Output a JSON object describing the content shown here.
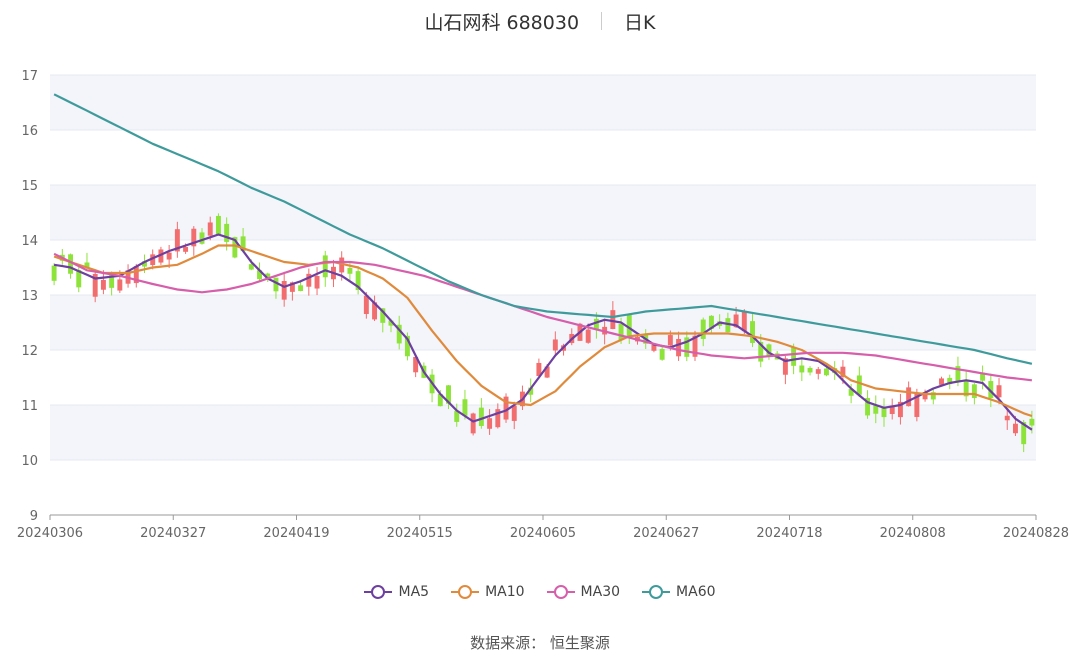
{
  "title": {
    "name": "山石网科 688030",
    "period": "日K"
  },
  "source": "数据来源： 恒生聚源",
  "colors": {
    "up": "#f26d6d",
    "down": "#8ee33b",
    "MA5": "#6c3fa0",
    "MA10": "#e08a3c",
    "MA30": "#d65eab",
    "MA60": "#3f9b9b"
  },
  "chart_data": {
    "type": "candlestick",
    "x_ticks": [
      "20240306",
      "20240327",
      "20240419",
      "20240515",
      "20240605",
      "20240627",
      "20240718",
      "20240808",
      "20240828"
    ],
    "y_ticks": [
      "9",
      "10",
      "11",
      "12",
      "13",
      "14",
      "15",
      "16",
      "17"
    ],
    "ylim": [
      9,
      17
    ],
    "n_days": 120,
    "legend": [
      "MA5",
      "MA10",
      "MA30",
      "MA60"
    ],
    "ma_series": [
      {
        "name": "MA5",
        "points": [
          [
            0,
            13.55
          ],
          [
            2,
            13.5
          ],
          [
            5,
            13.3
          ],
          [
            8,
            13.35
          ],
          [
            11,
            13.6
          ],
          [
            14,
            13.8
          ],
          [
            17,
            13.95
          ],
          [
            20,
            14.1
          ],
          [
            22,
            14.0
          ],
          [
            24,
            13.6
          ],
          [
            26,
            13.3
          ],
          [
            28,
            13.15
          ],
          [
            30,
            13.25
          ],
          [
            33,
            13.45
          ],
          [
            35,
            13.35
          ],
          [
            37,
            13.15
          ],
          [
            40,
            12.7
          ],
          [
            43,
            12.2
          ],
          [
            45,
            11.6
          ],
          [
            47,
            11.2
          ],
          [
            49,
            10.9
          ],
          [
            51,
            10.7
          ],
          [
            53,
            10.8
          ],
          [
            55,
            10.9
          ],
          [
            57,
            11.1
          ],
          [
            59,
            11.5
          ],
          [
            61,
            11.9
          ],
          [
            63,
            12.2
          ],
          [
            65,
            12.45
          ],
          [
            67,
            12.55
          ],
          [
            69,
            12.5
          ],
          [
            71,
            12.3
          ],
          [
            73,
            12.1
          ],
          [
            75,
            12.05
          ],
          [
            77,
            12.15
          ],
          [
            79,
            12.3
          ],
          [
            81,
            12.5
          ],
          [
            83,
            12.45
          ],
          [
            85,
            12.25
          ],
          [
            87,
            11.95
          ],
          [
            89,
            11.8
          ],
          [
            91,
            11.85
          ],
          [
            93,
            11.8
          ],
          [
            95,
            11.6
          ],
          [
            97,
            11.3
          ],
          [
            99,
            11.05
          ],
          [
            101,
            10.95
          ],
          [
            103,
            11.0
          ],
          [
            105,
            11.15
          ],
          [
            107,
            11.3
          ],
          [
            109,
            11.4
          ],
          [
            111,
            11.45
          ],
          [
            113,
            11.4
          ],
          [
            115,
            11.1
          ],
          [
            117,
            10.75
          ],
          [
            119,
            10.55
          ]
        ]
      },
      {
        "name": "MA10",
        "points": [
          [
            0,
            13.7
          ],
          [
            3,
            13.55
          ],
          [
            6,
            13.4
          ],
          [
            9,
            13.4
          ],
          [
            12,
            13.5
          ],
          [
            15,
            13.55
          ],
          [
            18,
            13.75
          ],
          [
            20,
            13.9
          ],
          [
            22,
            13.9
          ],
          [
            25,
            13.75
          ],
          [
            28,
            13.6
          ],
          [
            31,
            13.55
          ],
          [
            34,
            13.6
          ],
          [
            37,
            13.5
          ],
          [
            40,
            13.3
          ],
          [
            43,
            12.95
          ],
          [
            46,
            12.35
          ],
          [
            49,
            11.8
          ],
          [
            52,
            11.35
          ],
          [
            55,
            11.05
          ],
          [
            58,
            11.0
          ],
          [
            61,
            11.25
          ],
          [
            64,
            11.7
          ],
          [
            67,
            12.05
          ],
          [
            70,
            12.25
          ],
          [
            73,
            12.3
          ],
          [
            76,
            12.3
          ],
          [
            79,
            12.3
          ],
          [
            82,
            12.3
          ],
          [
            85,
            12.25
          ],
          [
            88,
            12.15
          ],
          [
            91,
            12.0
          ],
          [
            94,
            11.75
          ],
          [
            97,
            11.45
          ],
          [
            100,
            11.3
          ],
          [
            103,
            11.25
          ],
          [
            106,
            11.2
          ],
          [
            109,
            11.2
          ],
          [
            112,
            11.2
          ],
          [
            115,
            11.05
          ],
          [
            118,
            10.85
          ],
          [
            119,
            10.8
          ]
        ]
      },
      {
        "name": "MA30",
        "points": [
          [
            0,
            13.75
          ],
          [
            4,
            13.45
          ],
          [
            8,
            13.35
          ],
          [
            12,
            13.2
          ],
          [
            15,
            13.1
          ],
          [
            18,
            13.05
          ],
          [
            21,
            13.1
          ],
          [
            24,
            13.2
          ],
          [
            27,
            13.35
          ],
          [
            30,
            13.5
          ],
          [
            33,
            13.6
          ],
          [
            36,
            13.6
          ],
          [
            39,
            13.55
          ],
          [
            42,
            13.45
          ],
          [
            45,
            13.35
          ],
          [
            48,
            13.2
          ],
          [
            52,
            13.0
          ],
          [
            56,
            12.8
          ],
          [
            60,
            12.6
          ],
          [
            64,
            12.45
          ],
          [
            68,
            12.3
          ],
          [
            72,
            12.15
          ],
          [
            76,
            12.0
          ],
          [
            80,
            11.9
          ],
          [
            84,
            11.85
          ],
          [
            88,
            11.9
          ],
          [
            92,
            11.95
          ],
          [
            96,
            11.95
          ],
          [
            100,
            11.9
          ],
          [
            104,
            11.8
          ],
          [
            108,
            11.7
          ],
          [
            112,
            11.6
          ],
          [
            116,
            11.5
          ],
          [
            119,
            11.45
          ]
        ]
      },
      {
        "name": "MA60",
        "points": [
          [
            0,
            16.65
          ],
          [
            4,
            16.35
          ],
          [
            8,
            16.05
          ],
          [
            12,
            15.75
          ],
          [
            16,
            15.5
          ],
          [
            20,
            15.25
          ],
          [
            24,
            14.95
          ],
          [
            28,
            14.7
          ],
          [
            32,
            14.4
          ],
          [
            36,
            14.1
          ],
          [
            40,
            13.85
          ],
          [
            44,
            13.55
          ],
          [
            48,
            13.25
          ],
          [
            52,
            13.0
          ],
          [
            56,
            12.8
          ],
          [
            60,
            12.7
          ],
          [
            64,
            12.65
          ],
          [
            68,
            12.6
          ],
          [
            72,
            12.7
          ],
          [
            76,
            12.75
          ],
          [
            80,
            12.8
          ],
          [
            84,
            12.7
          ],
          [
            88,
            12.6
          ],
          [
            92,
            12.5
          ],
          [
            96,
            12.4
          ],
          [
            100,
            12.3
          ],
          [
            104,
            12.2
          ],
          [
            108,
            12.1
          ],
          [
            112,
            12.0
          ],
          [
            116,
            11.85
          ],
          [
            119,
            11.75
          ]
        ]
      }
    ]
  }
}
